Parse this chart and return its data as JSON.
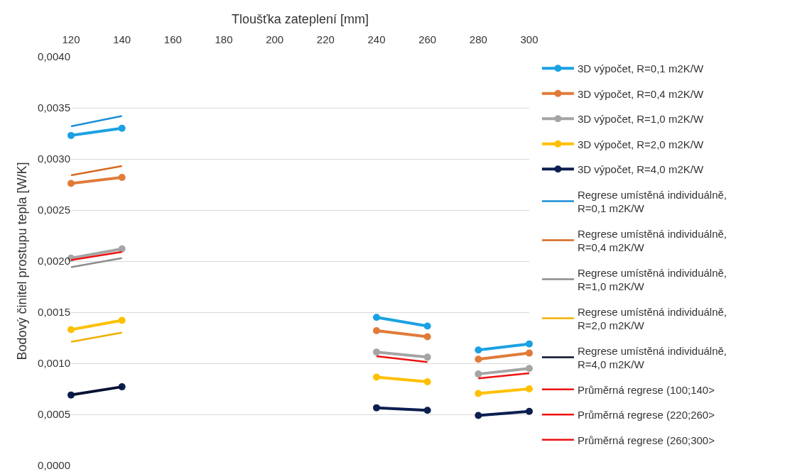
{
  "chart_data": {
    "type": "line",
    "xlabel": "Tloušťka zateplení [mm]",
    "ylabel": "Bodový činitel prostupu tepla [W/K]",
    "xlim": [
      120,
      300
    ],
    "xticks": [
      120,
      140,
      160,
      180,
      200,
      220,
      240,
      260,
      280,
      300
    ],
    "ylim": [
      0,
      0.004
    ],
    "yticks": [
      {
        "value": 0,
        "label": "0,0000"
      },
      {
        "value": 0.0005,
        "label": "0,0005"
      },
      {
        "value": 0.001,
        "label": "0,0010"
      },
      {
        "value": 0.0015,
        "label": "0,0015"
      },
      {
        "value": 0.002,
        "label": "0,0020"
      },
      {
        "value": 0.0025,
        "label": "0,0025"
      },
      {
        "value": 0.003,
        "label": "0,0030"
      },
      {
        "value": 0.0035,
        "label": "0,0035"
      },
      {
        "value": 0.004,
        "label": "0,0040"
      }
    ],
    "grid": "y",
    "legend": "right",
    "line_style": "solid",
    "series": [
      {
        "name": "3D výpočet, R=0,1 m2K/W",
        "color": "#1ba1e2",
        "marker": "circle",
        "x": [
          120,
          140,
          200,
          240,
          260,
          270,
          280,
          300
        ],
        "values": [
          0.00323,
          0.0033,
          null,
          0.00145,
          0.001365,
          null,
          0.00113,
          0.00119
        ]
      },
      {
        "name": "3D výpočet, R=0,4 m2K/W",
        "color": "#e07b39",
        "marker": "circle",
        "x": [
          120,
          140,
          200,
          240,
          260,
          270,
          280,
          300
        ],
        "values": [
          0.00276,
          0.00282,
          null,
          0.00132,
          0.00126,
          null,
          0.00104,
          0.0011
        ]
      },
      {
        "name": "3D výpočet, R=1,0 m2K/W",
        "color": "#a5a5a5",
        "marker": "circle",
        "x": [
          120,
          140,
          200,
          240,
          260,
          270,
          280,
          300
        ],
        "values": [
          0.00203,
          0.00212,
          null,
          0.00111,
          0.00106,
          null,
          0.000895,
          0.00095
        ]
      },
      {
        "name": "3D výpočet, R=2,0 m2K/W",
        "color": "#ffc000",
        "marker": "circle",
        "x": [
          120,
          140,
          200,
          240,
          260,
          270,
          280,
          300
        ],
        "values": [
          0.00133,
          0.00142,
          null,
          0.000865,
          0.00082,
          null,
          0.000705,
          0.00075
        ]
      },
      {
        "name": "3D výpočet, R=4,0 m2K/W",
        "color": "#0c1e50",
        "marker": "circle",
        "x": [
          120,
          140,
          200,
          240,
          260,
          270,
          280,
          300
        ],
        "values": [
          0.00069,
          0.00077,
          null,
          0.000565,
          0.00054,
          null,
          0.00049,
          0.00053
        ]
      },
      {
        "name": "Regrese umístěná individuálně,\nR=0,1 m2K/W",
        "color": "#1b8fd6",
        "marker": "none",
        "x": [
          120,
          140
        ],
        "values": [
          0.00332,
          0.00342
        ]
      },
      {
        "name": "Regrese umístěná individuálně,\nR=0,4 m2K/W",
        "color": "#d4691e",
        "marker": "none",
        "x": [
          120,
          140
        ],
        "values": [
          0.00284,
          0.00293
        ]
      },
      {
        "name": "Regrese umístěná individuálně,\nR=1,0 m2K/W",
        "color": "#8c8c8c",
        "marker": "none",
        "x": [
          120,
          140
        ],
        "values": [
          0.00194,
          0.00203
        ]
      },
      {
        "name": "Regrese umístěná individuálně,\nR=2,0 m2K/W",
        "color": "#f0b000",
        "marker": "none",
        "x": [
          120,
          140
        ],
        "values": [
          0.00121,
          0.0013
        ]
      },
      {
        "name": "Regrese umístěná individuálně,\nR=4,0 m2K/W",
        "color": "#0a0f2a",
        "marker": "none",
        "x": [
          120,
          140
        ],
        "values": [
          0.00069,
          0.00077
        ]
      },
      {
        "name": "Průměrná regrese (100;140>",
        "color": "#ee1111",
        "marker": "none",
        "x": [
          120,
          140
        ],
        "values": [
          0.00201,
          0.00209
        ]
      },
      {
        "name": "Průměrná regrese (220;260>",
        "color": "#ee1111",
        "marker": "none",
        "x": [
          240,
          260
        ],
        "values": [
          0.00107,
          0.001012
        ]
      },
      {
        "name": "Průměrná regrese (260;300>",
        "color": "#ee1111",
        "marker": "none",
        "x": [
          280,
          300
        ],
        "values": [
          0.000853,
          0.000902
        ]
      }
    ]
  }
}
